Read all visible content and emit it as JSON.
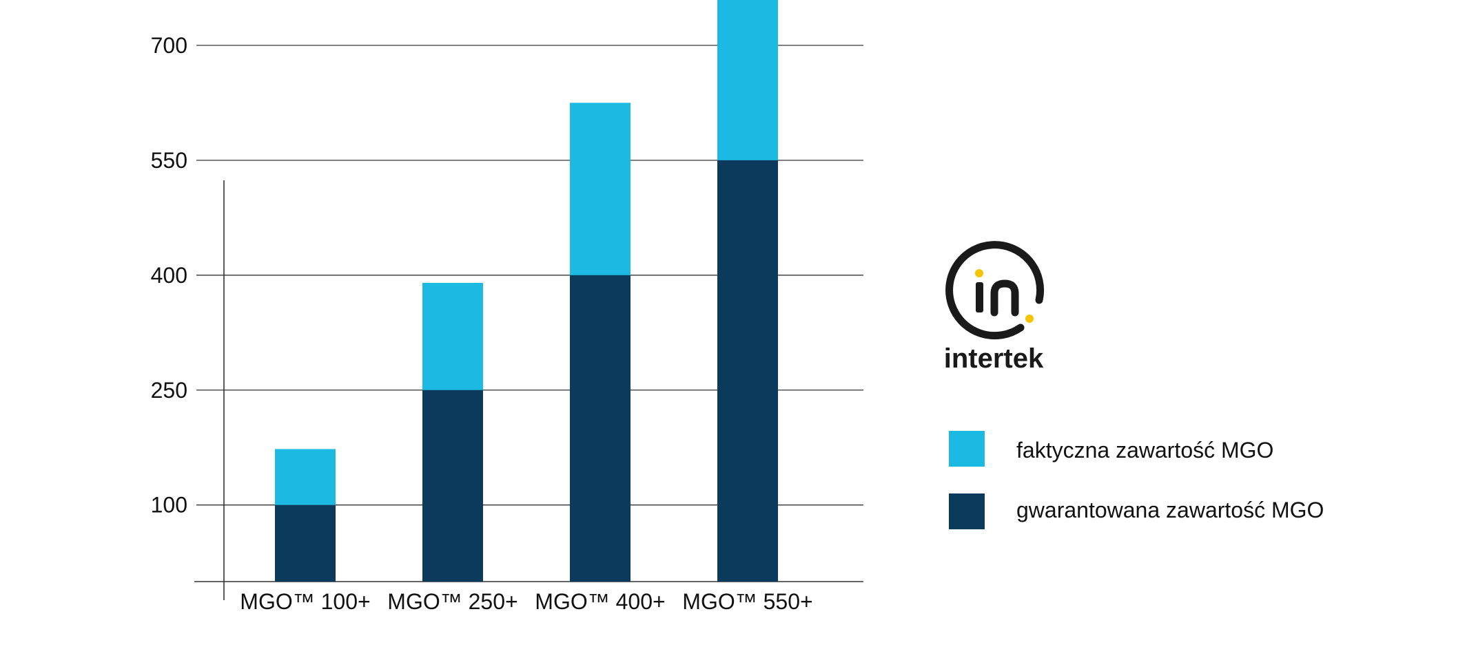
{
  "chart_data": {
    "type": "bar",
    "stacked": true,
    "categories": [
      "MGO™ 100+",
      "MGO™ 250+",
      "MGO™ 400+",
      "MGO™ 550+"
    ],
    "series": [
      {
        "name": "gwarantowana zawartość MGO",
        "values": [
          100,
          250,
          400,
          550
        ],
        "color": "#0b3a5c"
      },
      {
        "name": "faktyczna zawartość MGO",
        "values": [
          73,
          140,
          225,
          213
        ],
        "color": "#1cb9e2"
      }
    ],
    "totals": [
      173,
      390,
      625,
      763
    ],
    "yticks": [
      100,
      250,
      400,
      550,
      700
    ],
    "ylim": [
      0,
      780
    ],
    "grid": true,
    "legend": "right",
    "title": "",
    "xlabel": "",
    "ylabel": ""
  },
  "legend": {
    "items": [
      {
        "label": "faktyczna zawartość MGO",
        "color": "#1cb9e2"
      },
      {
        "label": "gwarantowana zawartość MGO",
        "color": "#0b3a5c"
      }
    ]
  },
  "logo": {
    "word": "intertek",
    "icon": "intertek-logo-icon",
    "accent": "#f5c400",
    "ink": "#1a1a1a"
  }
}
